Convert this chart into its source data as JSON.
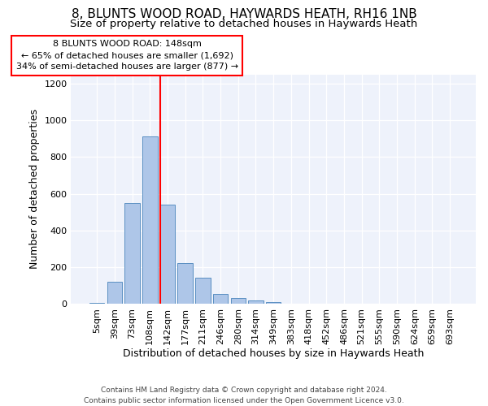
{
  "title": "8, BLUNTS WOOD ROAD, HAYWARDS HEATH, RH16 1NB",
  "subtitle": "Size of property relative to detached houses in Haywards Heath",
  "xlabel": "Distribution of detached houses by size in Haywards Heath",
  "ylabel": "Number of detached properties",
  "footer_line1": "Contains HM Land Registry data © Crown copyright and database right 2024.",
  "footer_line2": "Contains public sector information licensed under the Open Government Licence v3.0.",
  "categories": [
    "5sqm",
    "39sqm",
    "73sqm",
    "108sqm",
    "142sqm",
    "177sqm",
    "211sqm",
    "246sqm",
    "280sqm",
    "314sqm",
    "349sqm",
    "383sqm",
    "418sqm",
    "452sqm",
    "486sqm",
    "521sqm",
    "555sqm",
    "590sqm",
    "624sqm",
    "659sqm",
    "693sqm"
  ],
  "bar_values": [
    5,
    120,
    550,
    910,
    540,
    220,
    140,
    52,
    32,
    20,
    10,
    0,
    0,
    0,
    0,
    0,
    0,
    0,
    0,
    0,
    0
  ],
  "bar_color": "#aec6e8",
  "bar_edgecolor": "#5a8fc2",
  "marker_bin_index": 4,
  "marker_color": "red",
  "annotation_line1": "8 BLUNTS WOOD ROAD: 148sqm",
  "annotation_line2": "← 65% of detached houses are smaller (1,692)",
  "annotation_line3": "34% of semi-detached houses are larger (877) →",
  "annotation_bbox_facecolor": "white",
  "annotation_bbox_edgecolor": "red",
  "ylim": [
    0,
    1250
  ],
  "yticks": [
    0,
    200,
    400,
    600,
    800,
    1000,
    1200
  ],
  "bg_color": "#eef2fb",
  "grid_color": "white",
  "title_fontsize": 11,
  "subtitle_fontsize": 9.5,
  "xlabel_fontsize": 9,
  "ylabel_fontsize": 9,
  "tick_fontsize": 8,
  "annotation_fontsize": 8,
  "footer_fontsize": 6.5,
  "bar_width": 0.85
}
